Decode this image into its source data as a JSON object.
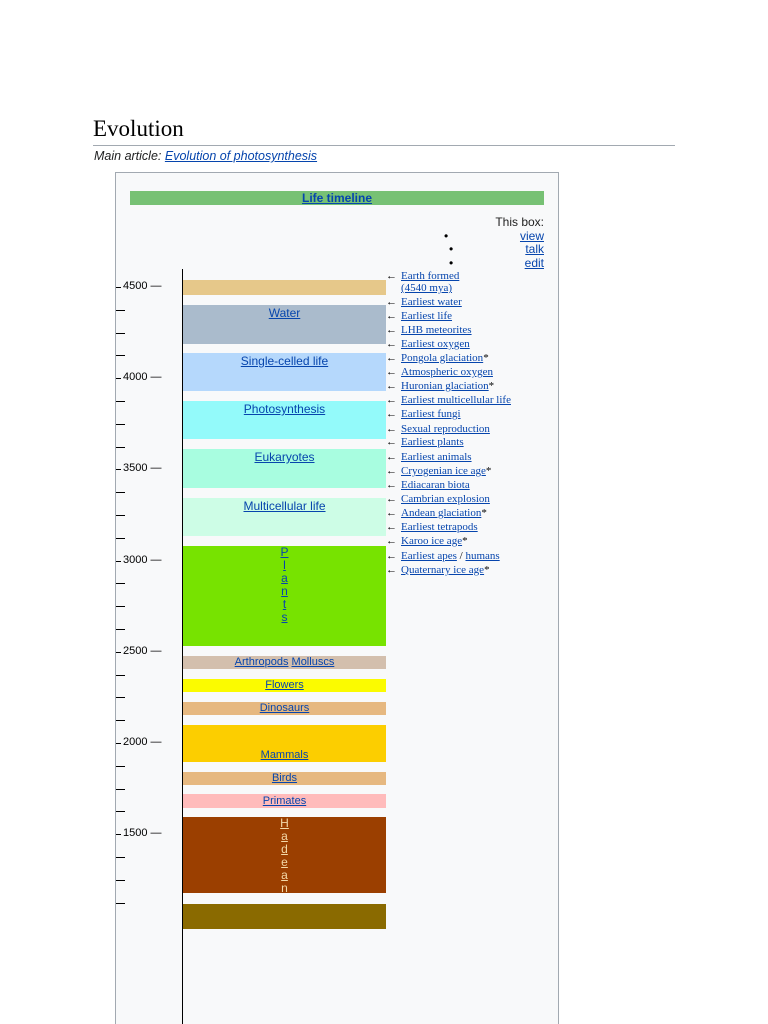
{
  "heading": "Evolution",
  "hatnote": {
    "prefix": "Main article:",
    "link": "Evolution of photosynthesis"
  },
  "timeline": {
    "title": "Life timeline",
    "navbox": {
      "label": "This box:",
      "links": [
        "view",
        "talk",
        "edit"
      ]
    },
    "axis_labels": [
      "4500",
      "4000",
      "3500",
      "3000",
      "2500",
      "2000",
      "1500"
    ],
    "dash": "—",
    "bars": {
      "water": "Water",
      "single_celled": "Single-celled life",
      "photosynthesis": "Photosynthesis",
      "eukaryotes": "Eukaryotes",
      "multicellular": "Multicellular life",
      "plants": [
        "P",
        "l",
        "a",
        "n",
        "t",
        "s"
      ],
      "arthropods": "Arthropods",
      "molluscs": "Molluscs",
      "flowers": "Flowers",
      "dinosaurs": "Dinosaurs",
      "mammals": "Mammals",
      "birds": "Birds",
      "primates": "Primates",
      "hadean": [
        "H",
        "a",
        "d",
        "e",
        "a",
        "n"
      ]
    },
    "arrow": "←",
    "asterisk": "*",
    "events": [
      "Earth formed",
      "(4540 mya)",
      "Earliest water",
      "Earliest life",
      "LHB meteorites",
      "Earliest oxygen",
      "Pongola glaciation",
      "Atmospheric oxygen",
      "Huronian glaciation",
      "Earliest multicellular life",
      "Earliest fungi",
      "Sexual reproduction",
      "Earliest plants",
      "Earliest animals",
      "Cryogenian ice age",
      "Ediacaran biota",
      "Cambrian explosion",
      "Andean glaciation",
      "Earliest tetrapods",
      "Karoo ice age",
      "Earliest apes",
      "humans",
      "Quaternary ice age"
    ],
    "slash": "/",
    "colors": {
      "title_bar": "#77c174",
      "earth_formed": "#e6c88a",
      "water": "#aabbcc",
      "single_celled": "#b5d8fc",
      "photosynthesis": "#93fafa",
      "eukaryotes": "#a8fde0",
      "multicellular": "#cdfde6",
      "plants": "#77e300",
      "arthropods": "#d3bfad",
      "flowers": "#fbfb00",
      "dinosaurs": "#e6b880",
      "mammals": "#fcce00",
      "birds": "#e6b880",
      "primates": "#ffbbbb",
      "hadean": "#9b3f00",
      "bottom": "#8a6a00"
    }
  }
}
